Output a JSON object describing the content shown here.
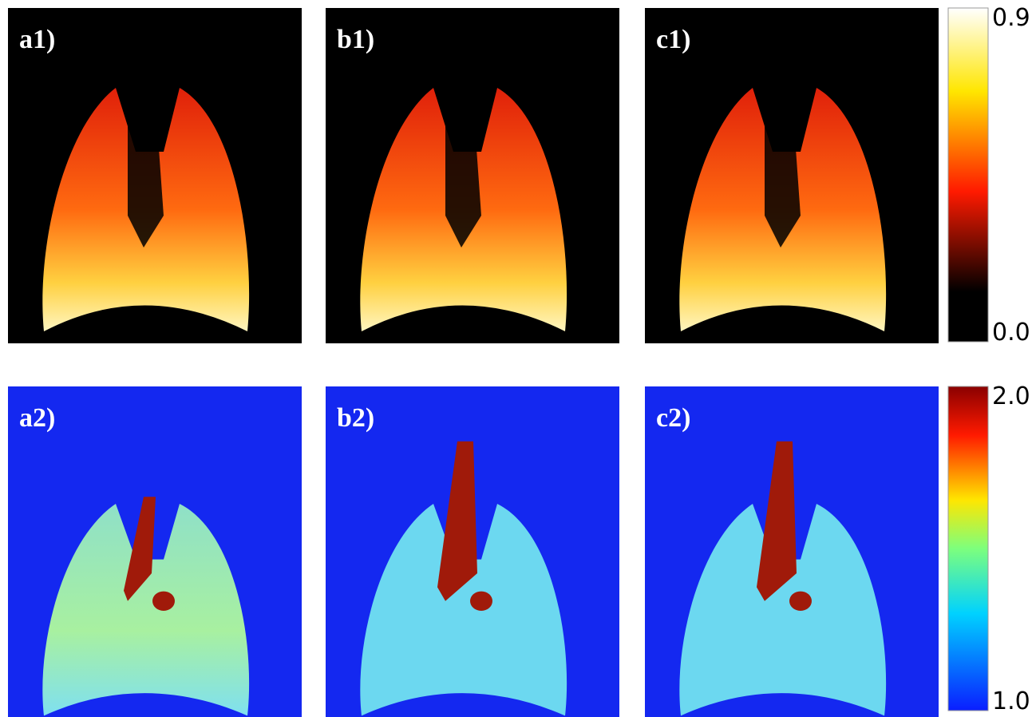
{
  "panels": [
    {
      "label": "a1)"
    },
    {
      "label": "b1)"
    },
    {
      "label": "c1)"
    },
    {
      "label": "a2)"
    },
    {
      "label": "b2)"
    },
    {
      "label": "c2)"
    }
  ],
  "colorbars": [
    {
      "max": "0.9",
      "min": "0.0"
    },
    {
      "max": "2.0",
      "min": "1.0"
    }
  ]
}
